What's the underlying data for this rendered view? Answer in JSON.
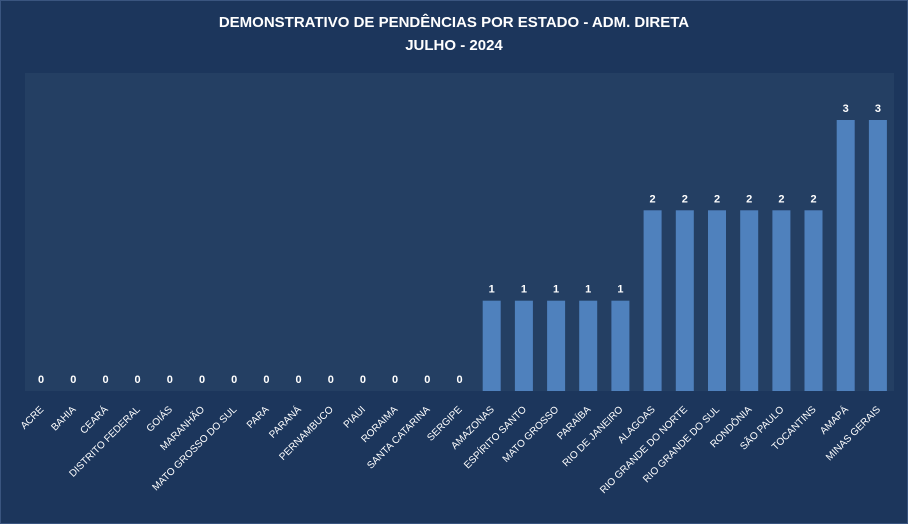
{
  "chart_data": {
    "type": "bar",
    "title": "DEMONSTRATIVO DE PENDÊNCIAS POR ESTADO - ADM. DIRETA",
    "subtitle": "JULHO - 2024",
    "xlabel": "",
    "ylabel": "",
    "ylim": [
      0,
      3.5
    ],
    "grid": false,
    "legend": "none",
    "categories": [
      "ACRE",
      "BAHIA",
      "CEARÁ",
      "DISTRITO FEDERAL",
      "GOIÁS",
      "MARANHÃO",
      "MATO GROSSO DO SUL",
      "PARA",
      "PARANÁ",
      "PERNAMBUCO",
      "PIAUI",
      "RORAIMA",
      "SANTA CATARINA",
      "SERGIPE",
      "AMAZONAS",
      "ESPÍRITO SANTO",
      "MATO GROSSO",
      "PARAÍBA",
      "RIO DE JANEIRO",
      "ALAGOAS",
      "RIO GRANDE DO NORTE",
      "RIO GRANDE DO SUL",
      "RONDÔNIA",
      "SÃO PAULO",
      "TOCANTINS",
      "AMAPÁ",
      "MINAS GERAIS"
    ],
    "values": [
      0,
      0,
      0,
      0,
      0,
      0,
      0,
      0,
      0,
      0,
      0,
      0,
      0,
      0,
      1,
      1,
      1,
      1,
      1,
      2,
      2,
      2,
      2,
      2,
      2,
      3,
      3
    ],
    "colors": {
      "bar": "#4f81bd",
      "plot_bg": "#243f63",
      "page_bg": "#1c365c",
      "text": "#ffffff"
    }
  }
}
